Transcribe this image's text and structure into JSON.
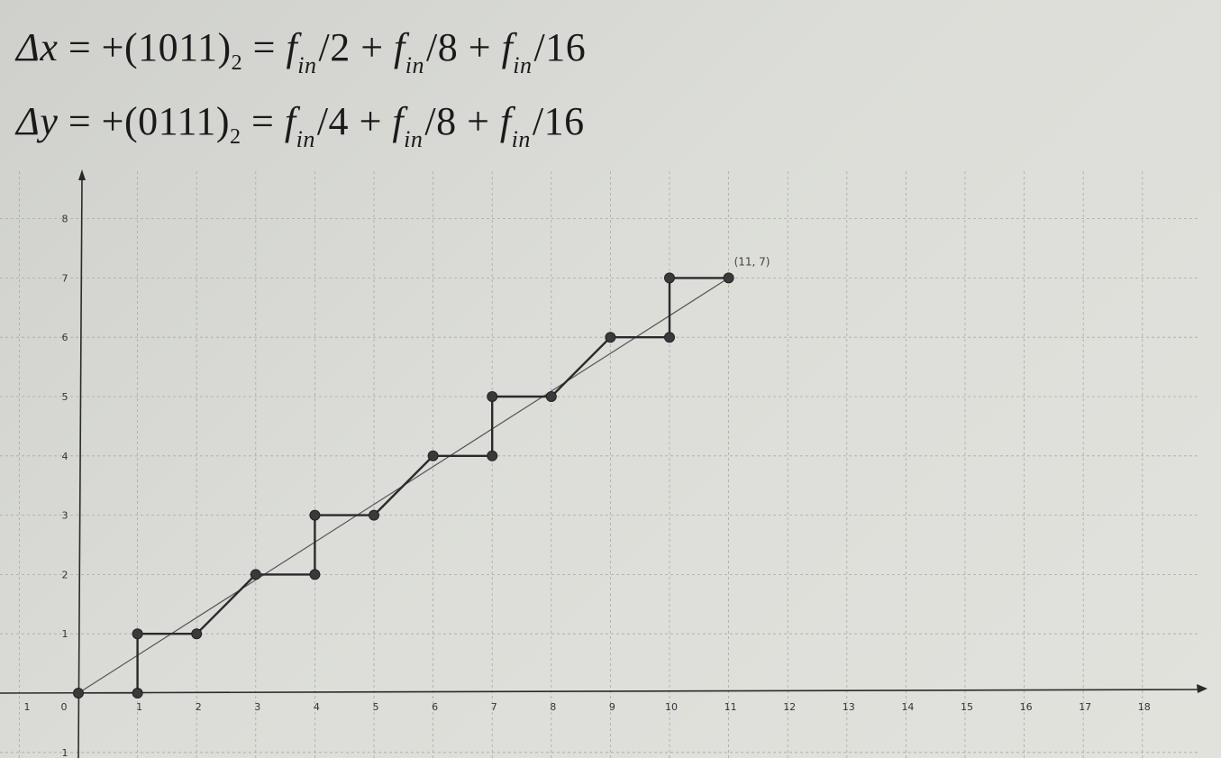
{
  "formulas": {
    "dx": {
      "lhs": "Δx",
      "mid": " = +(1011)",
      "base": "2",
      "terms": [
        {
          "f": "f",
          "sub": "in",
          "div": "/2"
        },
        {
          "f": "f",
          "sub": "in",
          "div": "/8"
        },
        {
          "f": "f",
          "sub": "in",
          "div": "/16"
        }
      ]
    },
    "dy": {
      "lhs": "Δy",
      "mid": " = +(0111)",
      "base": "2",
      "terms": [
        {
          "f": "f",
          "sub": "in",
          "div": "/4"
        },
        {
          "f": "f",
          "sub": "in",
          "div": "/8"
        },
        {
          "f": "f",
          "sub": "in",
          "div": "/16"
        }
      ]
    }
  },
  "chart_data": {
    "type": "line",
    "title": "",
    "xlabel": "",
    "ylabel": "",
    "xlim": [
      -1,
      18
    ],
    "ylim": [
      -1,
      8
    ],
    "grid": true,
    "x_ticks": [
      "1",
      "0",
      "1",
      "2",
      "3",
      "4",
      "5",
      "6",
      "7",
      "8",
      "9",
      "10",
      "11",
      "12",
      "13",
      "14",
      "15",
      "16",
      "17",
      "18"
    ],
    "y_ticks": [
      "1",
      "2",
      "3",
      "4",
      "5",
      "6",
      "7",
      "8"
    ],
    "series": [
      {
        "kind": "ideal-line",
        "x": [
          0,
          11
        ],
        "y": [
          0,
          7
        ]
      },
      {
        "kind": "step-path",
        "x": [
          1,
          1,
          2,
          3,
          4,
          4,
          5,
          6,
          7,
          7,
          8,
          9,
          10,
          10,
          11
        ],
        "y": [
          0,
          1,
          1,
          2,
          2,
          3,
          3,
          4,
          4,
          5,
          5,
          6,
          6,
          7,
          7
        ]
      }
    ],
    "points": [
      {
        "x": 0,
        "y": 0
      },
      {
        "x": 1,
        "y": 0
      },
      {
        "x": 1,
        "y": 1
      },
      {
        "x": 2,
        "y": 1
      },
      {
        "x": 3,
        "y": 2
      },
      {
        "x": 4,
        "y": 2
      },
      {
        "x": 4,
        "y": 3
      },
      {
        "x": 5,
        "y": 3
      },
      {
        "x": 6,
        "y": 4
      },
      {
        "x": 7,
        "y": 4
      },
      {
        "x": 7,
        "y": 5
      },
      {
        "x": 8,
        "y": 5
      },
      {
        "x": 9,
        "y": 6
      },
      {
        "x": 10,
        "y": 6
      },
      {
        "x": 10,
        "y": 7
      },
      {
        "x": 11,
        "y": 7
      }
    ],
    "annotations": [
      {
        "text": "(11, 7)",
        "x": 11,
        "y": 7
      }
    ]
  },
  "colors": {
    "grid": "#a9aaa5",
    "axis": "#2a2a2a",
    "path": "#2a2a2a",
    "point_fill": "#3a3a3a",
    "ideal_line": "#555555"
  }
}
